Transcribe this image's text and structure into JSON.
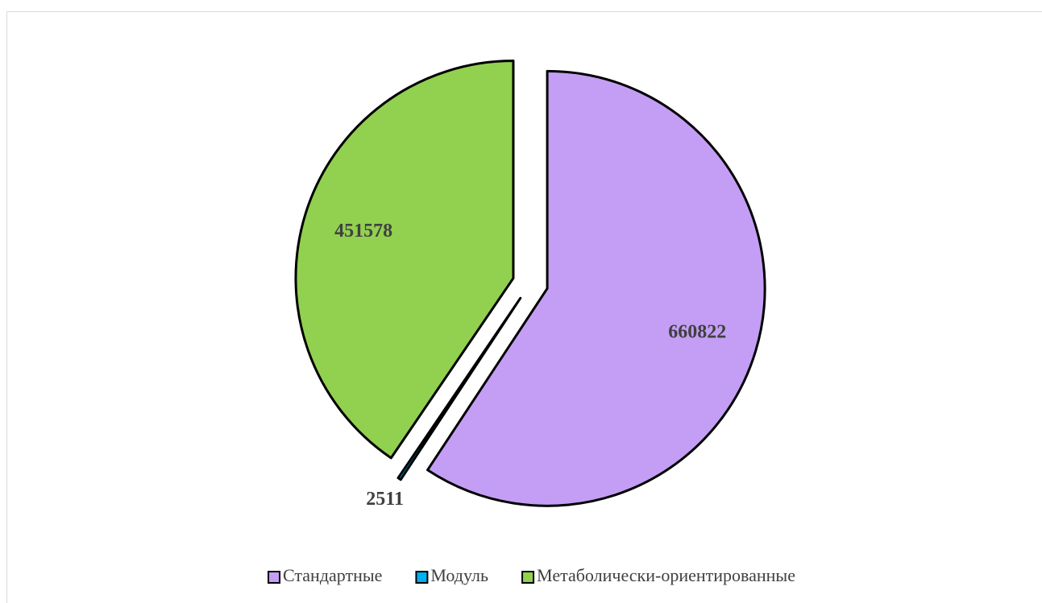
{
  "chart_data": {
    "type": "pie",
    "categories": [
      "Стандартные",
      "Модуль",
      "Метаболически-ориентированные"
    ],
    "values": [
      660822,
      2511,
      451578
    ],
    "colors": [
      "#c49ef5",
      "#00b0f0",
      "#92d050"
    ],
    "exploded": true,
    "legend": "bottom"
  }
}
